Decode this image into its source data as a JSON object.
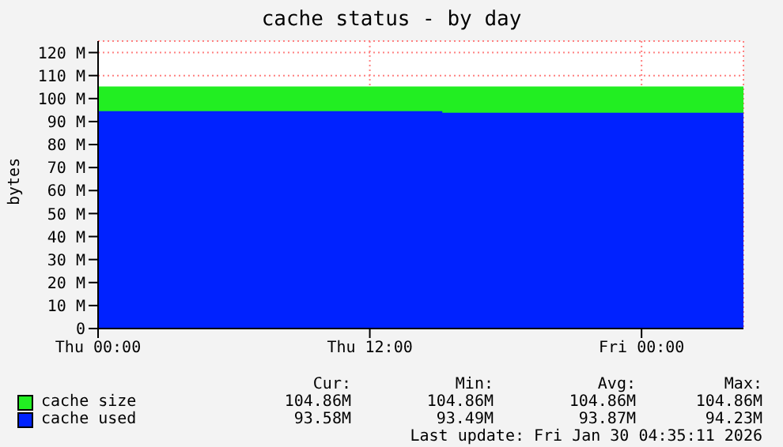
{
  "chart_data": {
    "type": "area",
    "title": "cache status - by day",
    "ylabel": "bytes",
    "xlim": [
      "2026-01-29T00:00",
      "2026-01-30T04:30"
    ],
    "xticks": [
      {
        "value": "2026-01-29T00:00",
        "label": "Thu 00:00"
      },
      {
        "value": "2026-01-29T12:00",
        "label": "Thu 12:00"
      },
      {
        "value": "2026-01-30T00:00",
        "label": "Fri 00:00"
      }
    ],
    "ylim": [
      0,
      125
    ],
    "yticks": [
      0,
      {
        "value": 10,
        "label": "10 M"
      },
      {
        "value": 20,
        "label": "20 M"
      },
      {
        "value": 30,
        "label": "30 M"
      },
      {
        "value": 40,
        "label": "40 M"
      },
      {
        "value": 50,
        "label": "50 M"
      },
      {
        "value": 60,
        "label": "60 M"
      },
      {
        "value": 70,
        "label": "70 M"
      },
      {
        "value": 80,
        "label": "80 M"
      },
      {
        "value": 90,
        "label": "90 M"
      },
      {
        "value": 100,
        "label": "100 M"
      },
      {
        "value": 110,
        "label": "110 M"
      },
      {
        "value": 120,
        "label": "120 M"
      }
    ],
    "grid": true,
    "legend": "bottom",
    "series": [
      {
        "name": "cache size",
        "color": "#22ee22",
        "type": "area",
        "x": [
          "2026-01-29T00:00",
          "2026-01-30T04:30"
        ],
        "values": [
          104.9,
          104.9
        ]
      },
      {
        "name": "cache used",
        "color": "#0022ff",
        "type": "area",
        "x": [
          "2026-01-29T00:00",
          "2026-01-29T15:10",
          "2026-01-29T15:10",
          "2026-01-30T04:30"
        ],
        "values": [
          94.2,
          94.2,
          93.5,
          93.5
        ]
      }
    ],
    "annotations": [
      "Cur:",
      "Min:",
      "Avg:",
      "Max:",
      "104.86M",
      "104.86M",
      "104.86M",
      "104.86M",
      "93.58M",
      "93.49M",
      "93.87M",
      "94.23M",
      "Last update: Fri Jan 30 04:35:11 2026"
    ]
  }
}
